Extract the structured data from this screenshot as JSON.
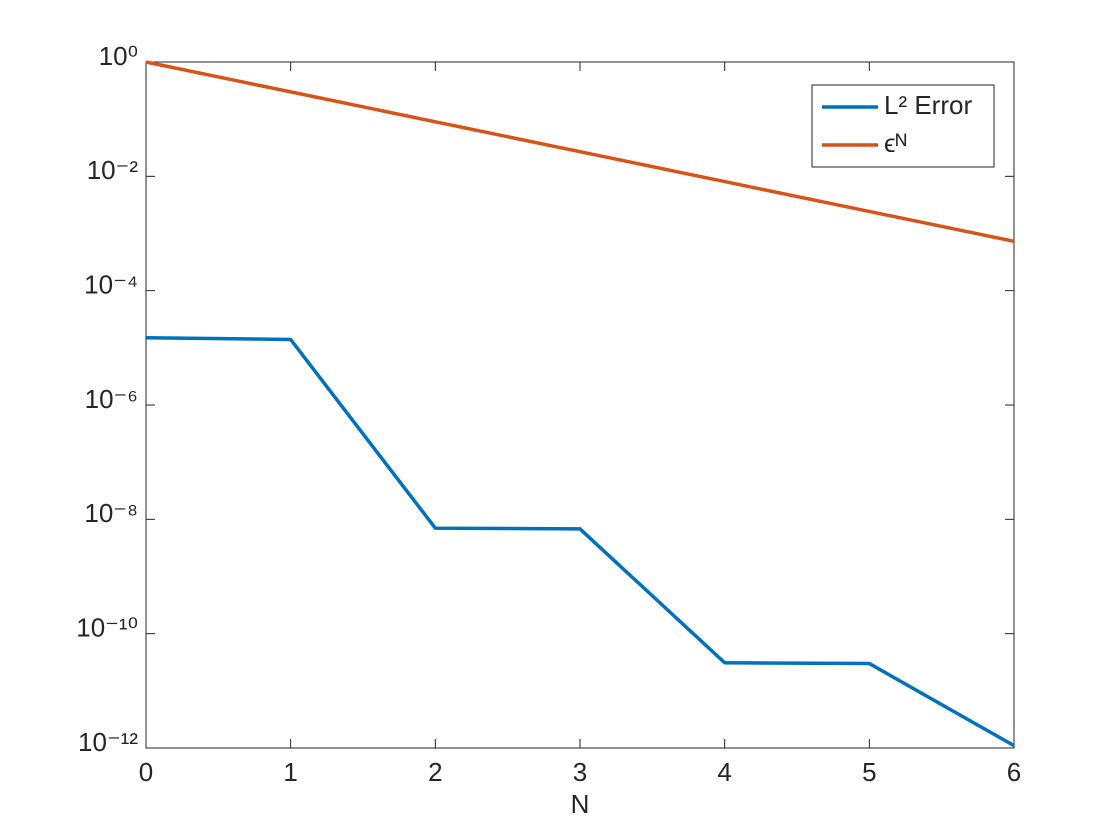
{
  "chart_data": {
    "type": "line",
    "xlabel": "N",
    "x": [
      0,
      1,
      2,
      3,
      4,
      5,
      6
    ],
    "series": [
      {
        "name": "L² Error",
        "color": "#0072bd",
        "values": [
          1.5e-05,
          1.4e-05,
          7e-09,
          6.8e-09,
          3.1e-11,
          3e-11,
          1.1e-12
        ]
      },
      {
        "name": "ϵᴺ",
        "color": "#d95319",
        "values": [
          1,
          0.3,
          0.09,
          0.027,
          0.0081,
          0.00243,
          0.000729
        ]
      }
    ],
    "xlim": [
      0,
      6
    ],
    "xticks": [
      0,
      1,
      2,
      3,
      4,
      5,
      6
    ],
    "ylim": [
      1e-12,
      1
    ],
    "yscale": "log",
    "yticks": [
      {
        "value": 1e-12,
        "label": "10⁻¹²"
      },
      {
        "value": 1e-10,
        "label": "10⁻¹⁰"
      },
      {
        "value": 1e-08,
        "label": "10⁻⁸"
      },
      {
        "value": 1e-06,
        "label": "10⁻⁶"
      },
      {
        "value": 0.0001,
        "label": "10⁻⁴"
      },
      {
        "value": 0.01,
        "label": "10⁻²"
      },
      {
        "value": 1,
        "label": "10⁰"
      }
    ],
    "legend": "northeast"
  }
}
